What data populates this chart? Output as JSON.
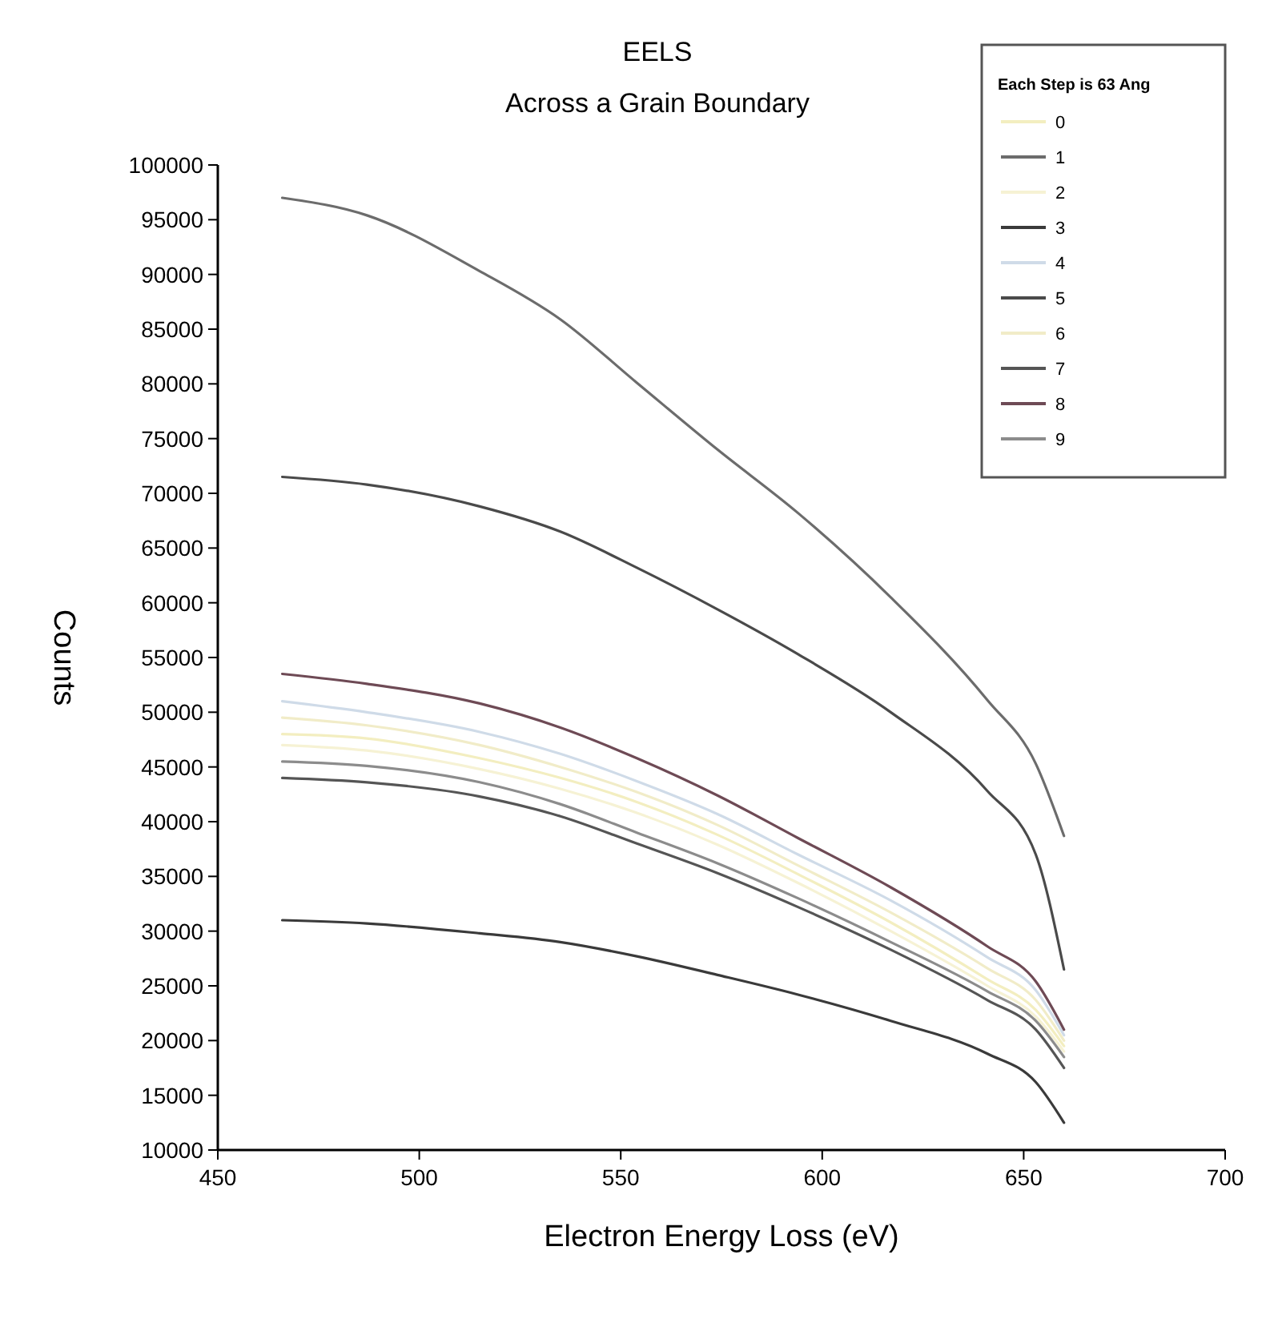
{
  "chart_data": {
    "type": "line",
    "title": "EELS",
    "subtitle": "Across a Grain Boundary",
    "xlabel": "Electron Energy Loss (eV)",
    "ylabel": "Counts",
    "legend_title": "Each Step is 63 Ang",
    "legend": "top right",
    "grid": false,
    "line_style": "solid",
    "xlim": [
      450,
      700
    ],
    "xticks": [
      450,
      500,
      550,
      600,
      650,
      700
    ],
    "ylim": [
      10000,
      100000
    ],
    "yticks": [
      10000,
      15000,
      20000,
      25000,
      30000,
      35000,
      40000,
      45000,
      50000,
      55000,
      60000,
      65000,
      70000,
      75000,
      80000,
      85000,
      90000,
      95000,
      100000
    ],
    "x": [
      466,
      487,
      515,
      535,
      554,
      574,
      594,
      617,
      641,
      653,
      660
    ],
    "series": [
      {
        "name": "0",
        "color": "#f3eec0",
        "values": [
          48000,
          47600,
          45800,
          44000,
          41800,
          38800,
          35200,
          30800,
          25600,
          22800,
          19500
        ]
      },
      {
        "name": "1",
        "color": "#6c6c6c",
        "values": [
          97000,
          95400,
          90300,
          85900,
          80100,
          74000,
          68200,
          60500,
          51100,
          45300,
          38700
        ]
      },
      {
        "name": "2",
        "color": "#f6f2d4",
        "values": [
          47000,
          46500,
          44800,
          43000,
          40800,
          37900,
          34400,
          30000,
          25000,
          22200,
          19000
        ]
      },
      {
        "name": "3",
        "color": "#3a3a3a",
        "values": [
          31000,
          30700,
          29800,
          29000,
          27700,
          26000,
          24200,
          21800,
          18800,
          16200,
          12500
        ]
      },
      {
        "name": "4",
        "color": "#cfdbe8",
        "values": [
          51000,
          50000,
          48200,
          46200,
          43700,
          40700,
          37000,
          32800,
          27600,
          24600,
          20500
        ]
      },
      {
        "name": "5",
        "color": "#4a4a4a",
        "values": [
          71500,
          70800,
          68800,
          66500,
          63200,
          59400,
          55300,
          50000,
          42800,
          37000,
          26500
        ]
      },
      {
        "name": "6",
        "color": "#f1ecc8",
        "values": [
          49500,
          48800,
          47000,
          45000,
          42700,
          39700,
          36000,
          31700,
          26600,
          23700,
          20000
        ]
      },
      {
        "name": "7",
        "color": "#555555",
        "values": [
          44000,
          43600,
          42300,
          40500,
          38000,
          35300,
          32200,
          28300,
          23700,
          21000,
          17500
        ]
      },
      {
        "name": "8",
        "color": "#6e4a55",
        "values": [
          53500,
          52600,
          50800,
          48600,
          45800,
          42400,
          38500,
          34000,
          28600,
          25400,
          21000
        ]
      },
      {
        "name": "9",
        "color": "#8c8c8c",
        "values": [
          45500,
          45100,
          43600,
          41600,
          39000,
          36200,
          33000,
          29000,
          24500,
          21800,
          18500
        ]
      }
    ]
  }
}
